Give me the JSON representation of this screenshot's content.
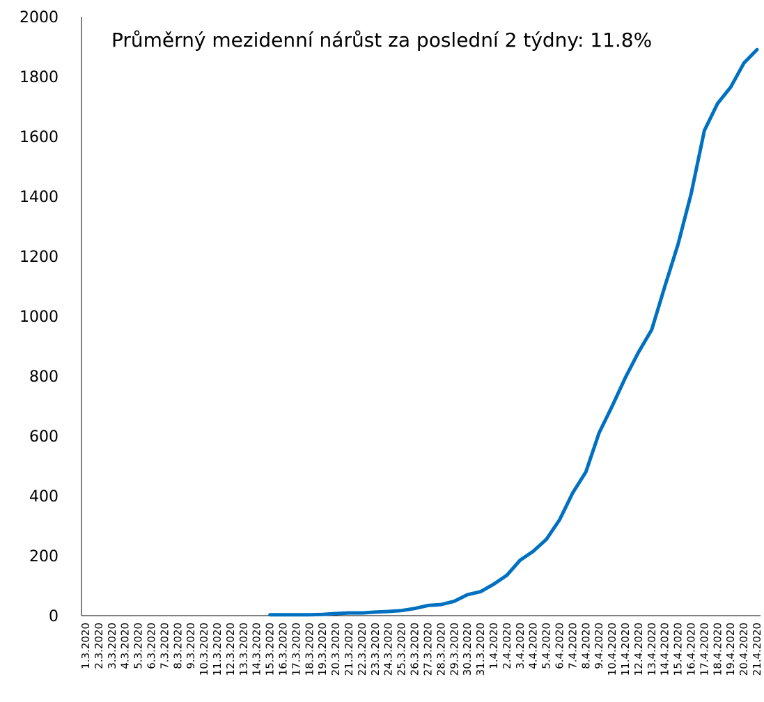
{
  "chart_data": {
    "type": "line",
    "annotation": "Průměrný mezidenní nárůst za poslední 2 týdny: 11.8%",
    "categories": [
      "1.3.2020",
      "2.3.2020",
      "3.3.2020",
      "4.3.2020",
      "5.3.2020",
      "6.3.2020",
      "7.3.2020",
      "8.3.2020",
      "9.3.2020",
      "10.3.2020",
      "11.3.2020",
      "12.3.2020",
      "13.3.2020",
      "14.3.2020",
      "15.3.2020",
      "16.3.2020",
      "17.3.2020",
      "18.3.2020",
      "19.3.2020",
      "20.3.2020",
      "21.3.2020",
      "22.3.2020",
      "23.3.2020",
      "24.3.2020",
      "25.3.2020",
      "26.3.2020",
      "27.3.2020",
      "28.3.2020",
      "29.3.2020",
      "30.3.2020",
      "31.3.2020",
      "1.4.2020",
      "2.4.2020",
      "3.4.2020",
      "4.4.2020",
      "5.4.2020",
      "6.4.2020",
      "7.4.2020",
      "8.4.2020",
      "9.4.2020",
      "10.4.2020",
      "11.4.2020",
      "12.4.2020",
      "13.4.2020",
      "14.4.2020",
      "15.4.2020",
      "16.4.2020",
      "17.4.2020",
      "18.4.2020",
      "19.4.2020",
      "20.4.2020",
      "21.4.2020"
    ],
    "values": [
      null,
      null,
      null,
      null,
      null,
      null,
      null,
      null,
      null,
      null,
      null,
      null,
      null,
      null,
      3,
      3,
      3,
      3,
      4,
      7,
      9,
      9,
      12,
      14,
      17,
      24,
      34,
      37,
      48,
      70,
      80,
      105,
      135,
      185,
      215,
      255,
      320,
      410,
      480,
      610,
      700,
      795,
      880,
      955,
      1100,
      1240,
      1410,
      1620,
      1710,
      1765,
      1845,
      1890
    ],
    "color": "#0070c0",
    "ylim": [
      0,
      2000
    ],
    "yticks": [
      0,
      200,
      400,
      600,
      800,
      1000,
      1200,
      1400,
      1600,
      1800,
      2000
    ],
    "grid": false
  }
}
